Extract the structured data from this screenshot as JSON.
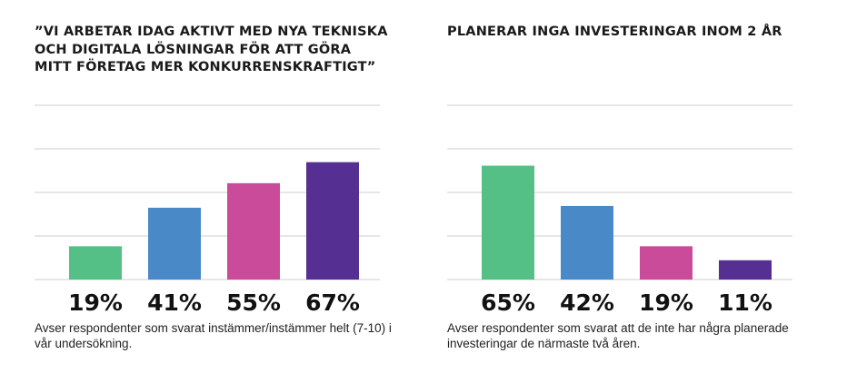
{
  "colors": [
    "#55c085",
    "#4a89c8",
    "#c94b9a",
    "#552f91"
  ],
  "chart_data": [
    {
      "type": "bar",
      "title": "”VI ARBETAR IDAG AKTIVT MED NYA TEKNISKA\nOCH DIGITALA LÖSNINGAR FÖR ATT GÖRA\nMITT FÖRETAG MER KONKURRENSKRAFTIGT”",
      "values": [
        19,
        41,
        55,
        67
      ],
      "value_labels": [
        "19%",
        "41%",
        "55%",
        "67%"
      ],
      "ylim": [
        0,
        100
      ],
      "grid": true,
      "note": "Avser respondenter som svarat instämmer/instämmer helt (7-10) i vår undersökning."
    },
    {
      "type": "bar",
      "title": "PLANERAR INGA INVESTERINGAR INOM 2 ÅR",
      "values": [
        65,
        42,
        19,
        11
      ],
      "value_labels": [
        "65%",
        "42%",
        "19%",
        "11%"
      ],
      "ylim": [
        0,
        100
      ],
      "grid": true,
      "note": "Avser respondenter som svarat att de inte har några planerade investeringar de närmaste två åren."
    }
  ]
}
